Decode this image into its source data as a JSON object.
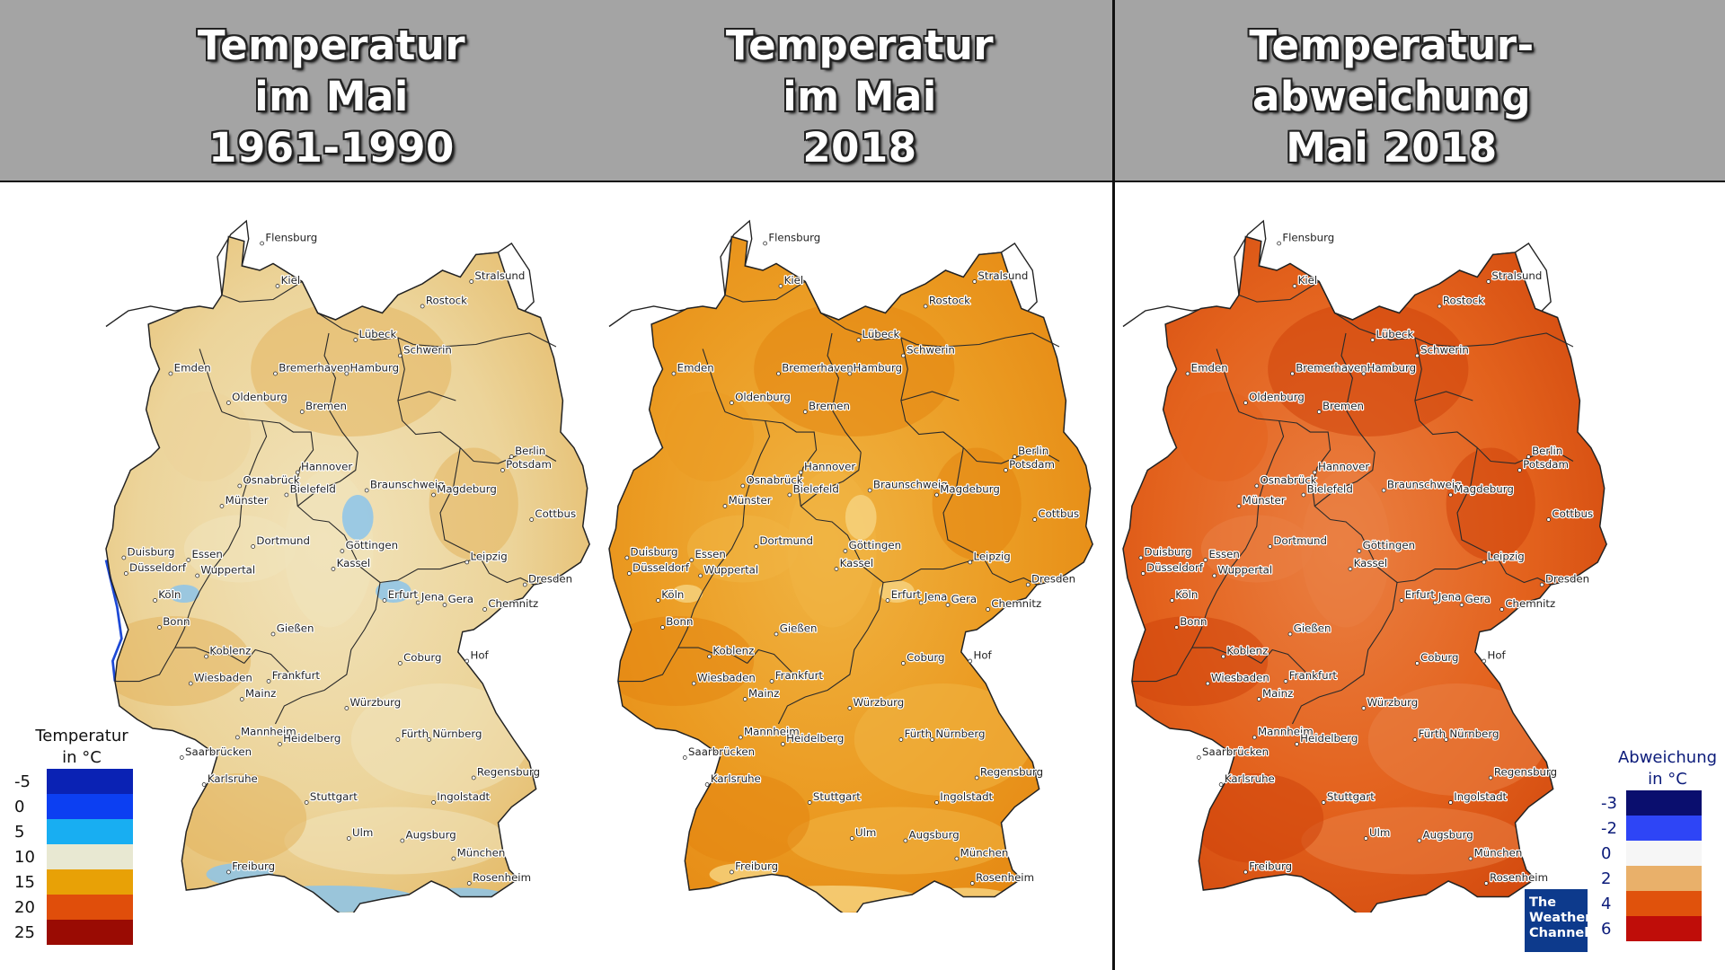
{
  "panels": [
    {
      "title_lines": [
        "Temperatur",
        "im Mai",
        "1961-1990"
      ]
    },
    {
      "title_lines": [
        "Temperatur",
        "im Mai",
        "2018"
      ]
    },
    {
      "title_lines": [
        "Temperatur-",
        "abweichung",
        "Mai 2018"
      ]
    }
  ],
  "cities": [
    "Flensburg",
    "Kiel",
    "Stralsund",
    "Rostock",
    "Lübeck",
    "Schwerin",
    "Emden",
    "Bremerhaven",
    "Hamburg",
    "Oldenburg",
    "Bremen",
    "Berlin",
    "Potsdam",
    "Hannover",
    "Braunschweig",
    "Magdeburg",
    "Osnabrück",
    "Bielefeld",
    "Münster",
    "Cottbus",
    "Dortmund",
    "Duisburg",
    "Essen",
    "Göttingen",
    "Leipzig",
    "Düsseldorf",
    "Wuppertal",
    "Kassel",
    "Dresden",
    "Köln",
    "Erfurt",
    "Jena",
    "Gera",
    "Chemnitz",
    "Bonn",
    "Gießen",
    "Koblenz",
    "Coburg",
    "Hof",
    "Wiesbaden",
    "Frankfurt",
    "Mainz",
    "Würzburg",
    "Mannheim",
    "Heidelberg",
    "Fürth",
    "Nürnberg",
    "Saarbrücken",
    "Regensburg",
    "Karlsruhe",
    "Stuttgart",
    "Ingolstadt",
    "Ulm",
    "Augsburg",
    "München",
    "Rosenheim",
    "Freiburg"
  ],
  "legend_temperature": {
    "title_lines": [
      "Temperatur",
      "in °C"
    ],
    "items": [
      {
        "label": "-5",
        "color": "#0a22b4"
      },
      {
        "label": "0",
        "color": "#0c3ff2"
      },
      {
        "label": "5",
        "color": "#18aef2"
      },
      {
        "label": "10",
        "color": "#e8e8d2"
      },
      {
        "label": "15",
        "color": "#e8a106"
      },
      {
        "label": "20",
        "color": "#e04e0b"
      },
      {
        "label": "25",
        "color": "#9a0b03"
      }
    ]
  },
  "legend_deviation": {
    "title_lines": [
      "Abweichung",
      "in °C"
    ],
    "items": [
      {
        "label": "-3",
        "color": "#0a0e6e"
      },
      {
        "label": "-2",
        "color": "#2e45f6"
      },
      {
        "label": "0",
        "color": "#f6f6f6"
      },
      {
        "label": "2",
        "color": "#e9b06a"
      },
      {
        "label": "4",
        "color": "#e0520c"
      },
      {
        "label": "6",
        "color": "#bf0d09"
      }
    ]
  },
  "map_fills": {
    "panel1": {
      "base": "#ecd49a",
      "light": "#f1e3bb",
      "dark": "#e3b55e",
      "cold": "#8cc4ea"
    },
    "panel2": {
      "base": "#eb9b22",
      "light": "#f0b443",
      "dark": "#e48510",
      "cold": "#f6d17d"
    },
    "panel3": {
      "base": "#e3621d",
      "light": "#ea8043",
      "dark": "#cf440b",
      "cold": "#ed9660"
    }
  },
  "logo": {
    "lines": [
      "The",
      "Weather",
      "Channel"
    ]
  }
}
